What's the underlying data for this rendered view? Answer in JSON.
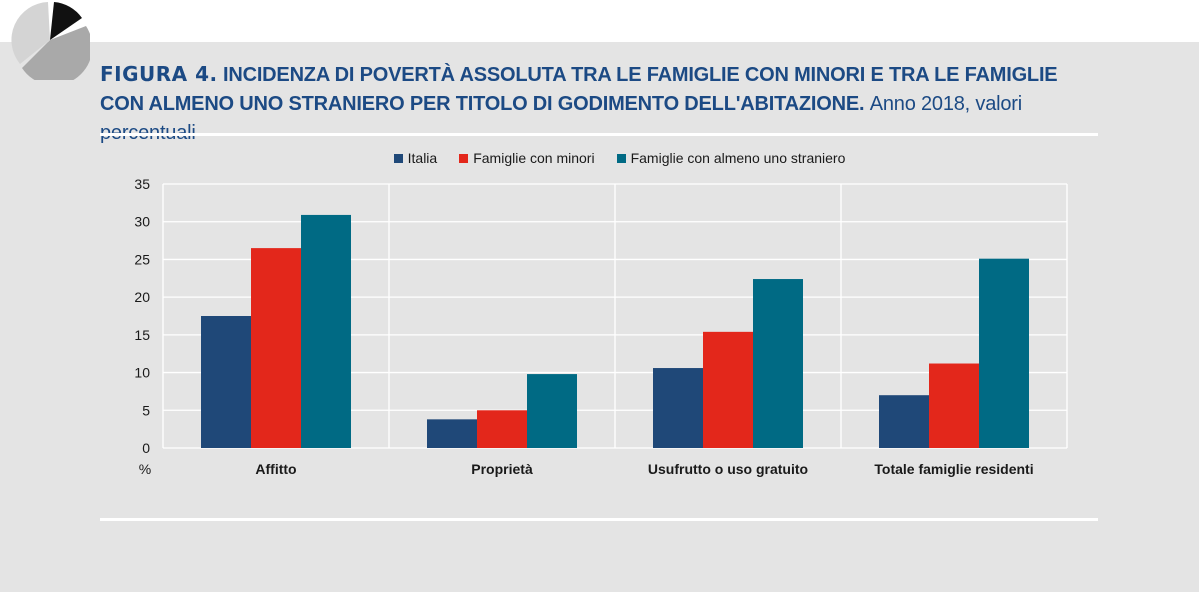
{
  "header": {
    "figure_label": "FIGURA 4.",
    "title": "INCIDENZA DI POVERTÀ ASSOLUTA TRA LE FAMIGLIE CON MINORI E TRA LE FAMIGLIE CON ALMENO UNO STRANIERO PER TITOLO DI GODIMENTO DELL'ABITAZIONE.",
    "subtitle": "Anno 2018, valori percentuali"
  },
  "colors": {
    "italia": "#1f4878",
    "minori": "#e3271b",
    "straniero": "#006a84",
    "title": "#1c4a84"
  },
  "chart_data": {
    "type": "bar",
    "title": "Incidenza di povertà assoluta tra le famiglie con minori e tra le famiglie con almeno uno straniero per titolo di godimento dell'abitazione",
    "ylabel": "%",
    "xlabel": "",
    "ylim": [
      0,
      35
    ],
    "yticks": [
      0,
      5,
      10,
      15,
      20,
      25,
      30,
      35
    ],
    "categories": [
      "Affitto",
      "Proprietà",
      "Usufrutto o uso gratuito",
      "Totale famiglie residenti"
    ],
    "series": [
      {
        "name": "Italia",
        "values": [
          17.5,
          3.8,
          10.6,
          7.0
        ]
      },
      {
        "name": "Famiglie con minori",
        "values": [
          26.5,
          5.0,
          15.4,
          11.2
        ]
      },
      {
        "name": "Famiglie con almeno uno straniero",
        "values": [
          30.9,
          9.8,
          22.4,
          25.1
        ]
      }
    ],
    "grid": true,
    "legend": "top-center"
  }
}
